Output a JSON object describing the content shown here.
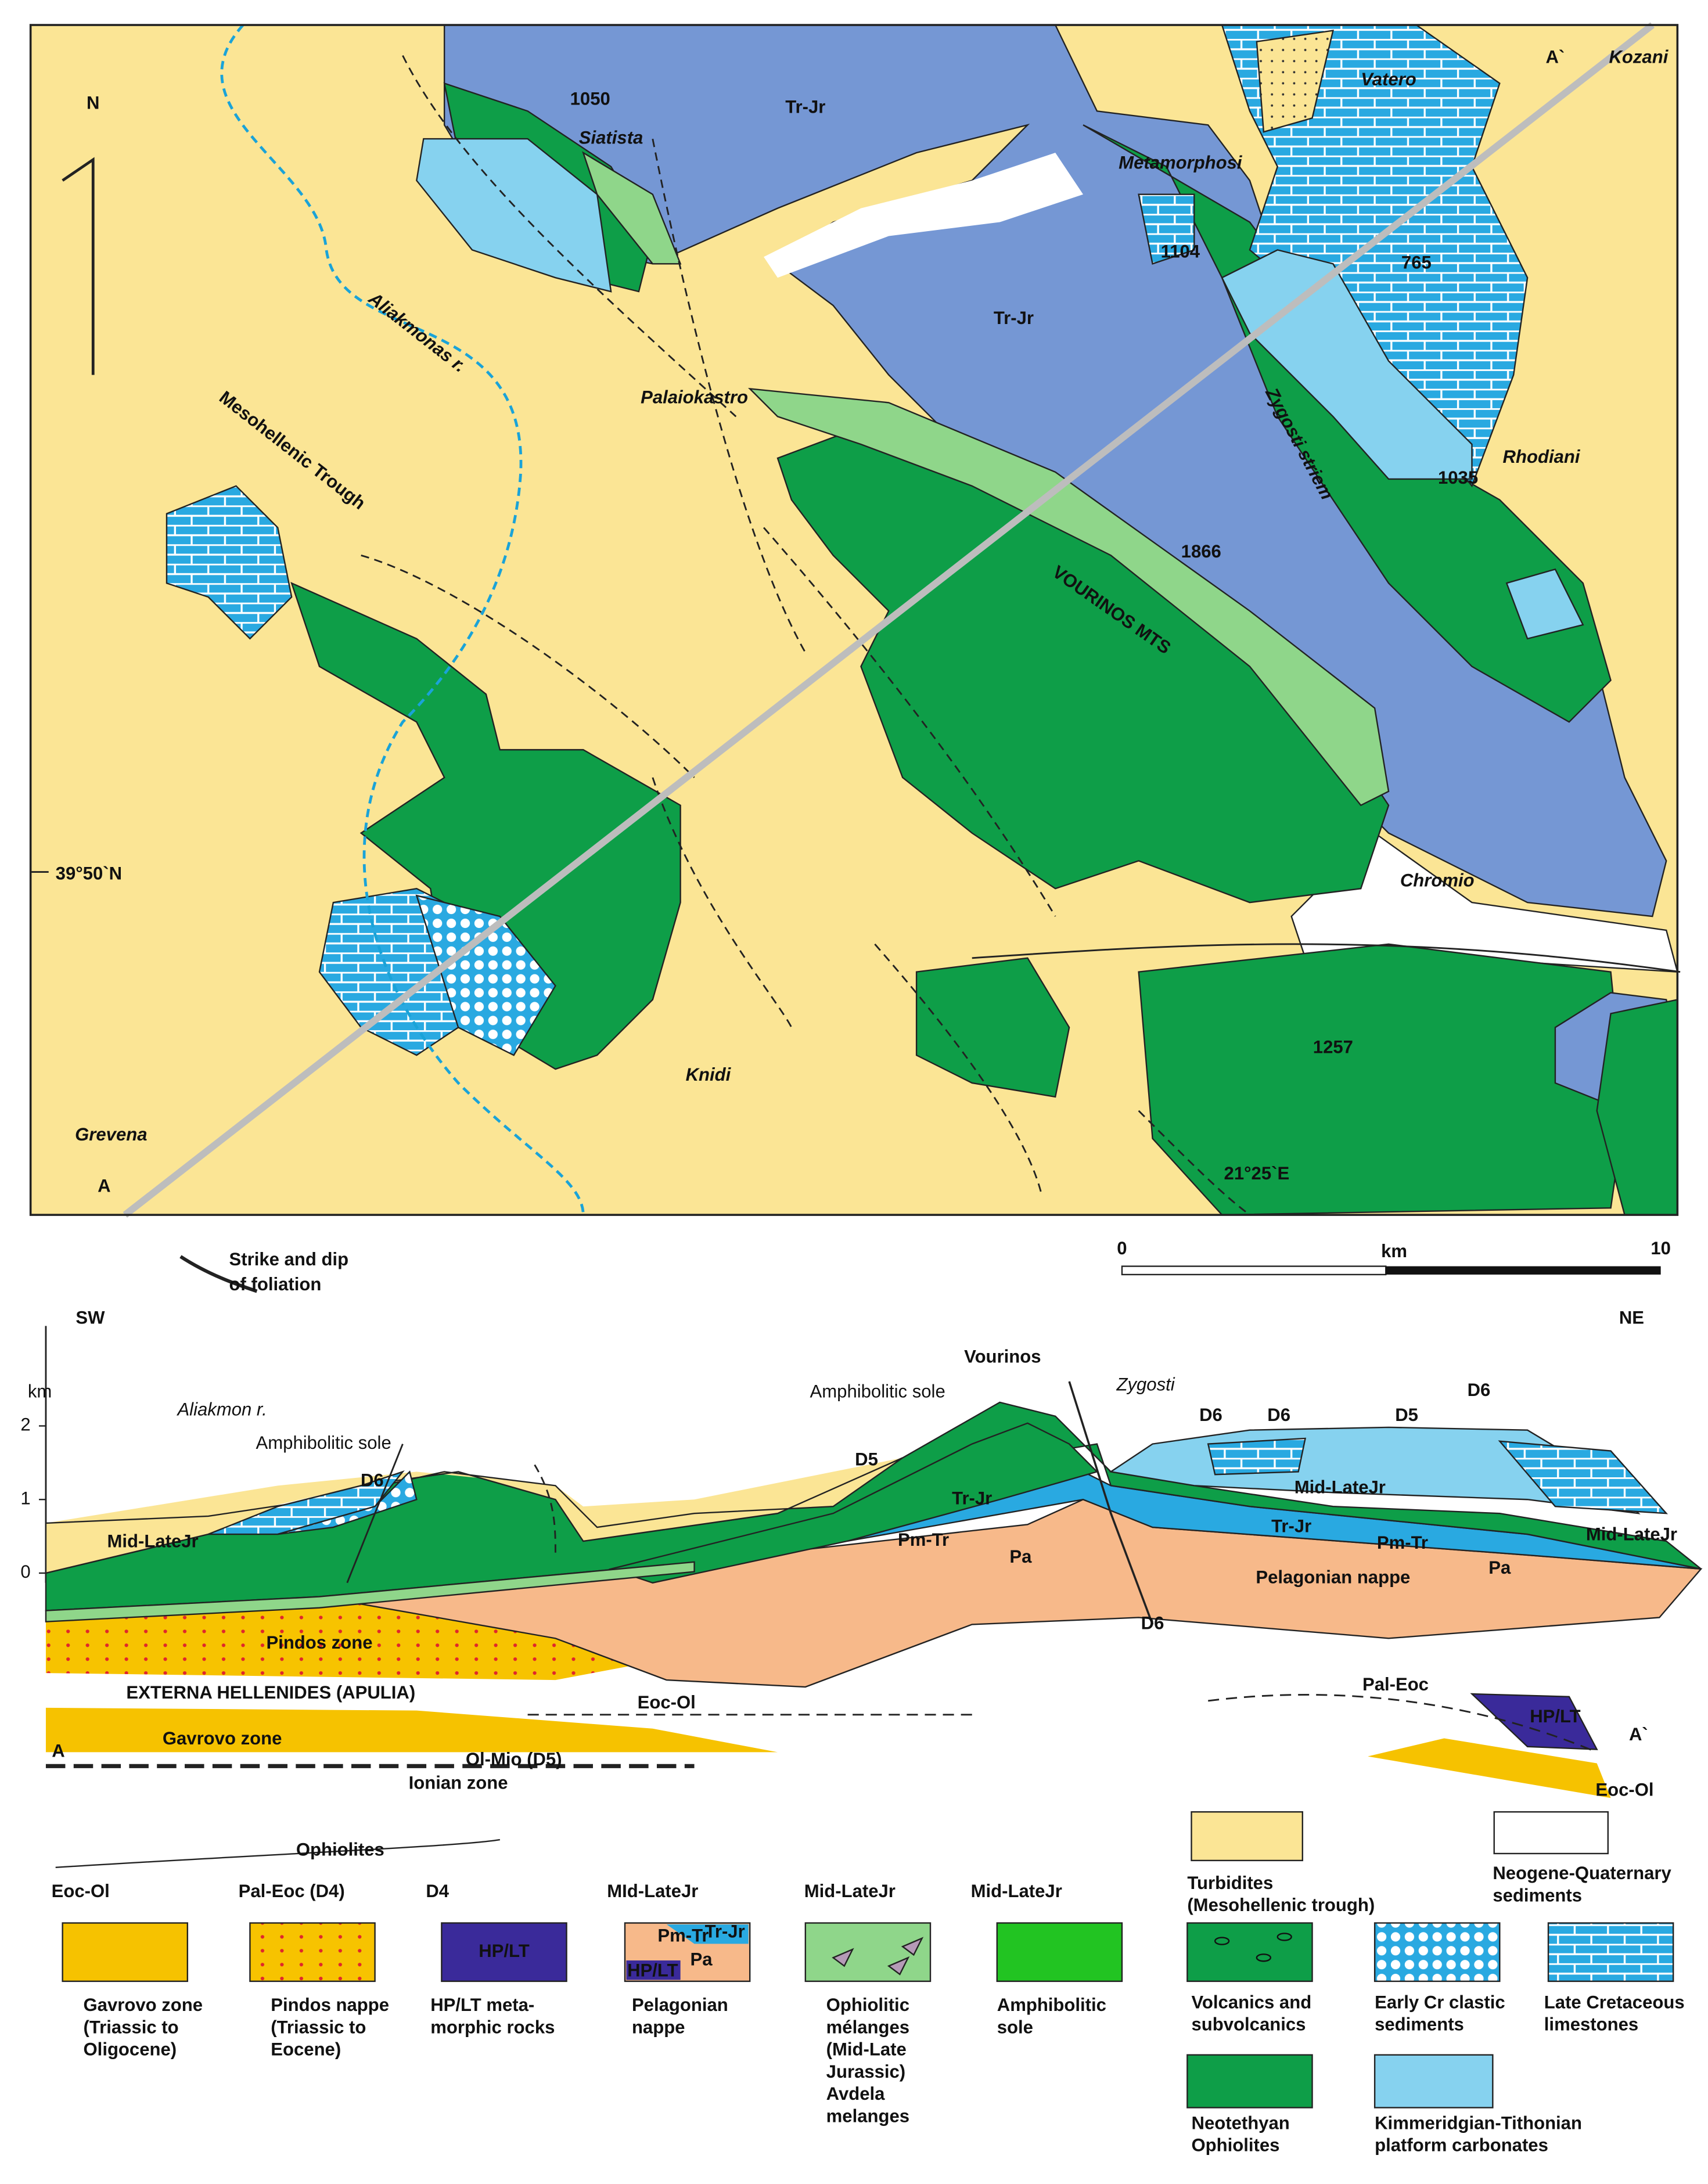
{
  "map": {
    "north": "N",
    "places": [
      "Siatista",
      "Metamorphosi",
      "Vatero",
      "Kozani",
      "Palaiokastro",
      "Rhodiani",
      "Chromio",
      "Knidi",
      "Grevena"
    ],
    "units": [
      "Tr-Jr",
      "Tr-Jr"
    ],
    "features": [
      "Aliakmonas r.",
      "Mesohellenic Trough",
      "Zygosti striem",
      "VOURINOS MTS"
    ],
    "elevations": [
      1050,
      1104,
      765,
      1035,
      1866,
      1257
    ],
    "latitude": "39°50`N",
    "longitude": "21°25`E",
    "section_start": "A",
    "section_end": "A`"
  },
  "foliation_symbol": [
    "Strike and dip",
    "of foliation"
  ],
  "scale_bar": {
    "ticks": [
      0,
      10
    ],
    "unit": "km"
  },
  "cross_section": {
    "left": "SW",
    "right": "NE",
    "axis_unit": "km",
    "axis_ticks": [
      0,
      1,
      2
    ],
    "labels": [
      "Aliakmon r.",
      "Amphibolitic sole",
      "D6",
      "Mid-LateJr",
      "Pindos zone",
      "EXTERNA HELLENIDES (APULIA)",
      "Eoc-Ol",
      "Gavrovo zone",
      "Ol-Mio (D5)",
      "Ionian zone",
      "A",
      "Amphibolitic sole",
      "D5",
      "Vourinos",
      "Tr-Jr",
      "Pm-Tr",
      "Pa",
      "Zygosti",
      "D6",
      "D6",
      "D5",
      "D6",
      "Mid-LateJr",
      "Tr-Jr",
      "Pm-Tr",
      "Pelagonian nappe",
      "Pa",
      "Mid-LateJr",
      "D6",
      "Pal-Eoc",
      "HP/LT",
      "A`",
      "Eoc-Ol"
    ]
  },
  "legend": {
    "thrusts": [
      "Ophiolites",
      "Eoc-Ol",
      "Pal-Eoc (D4)",
      "D4",
      "MId-LateJr",
      "Mid-LateJr",
      "Mid-LateJr"
    ],
    "items": [
      {
        "label": [
          "Gavrovo zone",
          "(Triassic to",
          "Oligocene)"
        ]
      },
      {
        "label": [
          "Pindos nappe",
          "(Triassic to",
          "Eocene)"
        ]
      },
      {
        "label": [
          "HP/LT meta-",
          "morphic rocks"
        ],
        "swatch_text": [
          "HP/LT"
        ]
      },
      {
        "label": [
          "Pelagonian",
          "nappe"
        ],
        "swatch_text": [
          "Pm-Tr",
          "Tr-Jr",
          "HP/LT",
          "Pa"
        ]
      },
      {
        "label": [
          "Ophiolitic",
          "mélanges",
          "(Mid-Late",
          "Jurassic)",
          "Avdela",
          "melanges"
        ]
      },
      {
        "label": [
          "Amphibolitic",
          "sole"
        ]
      },
      {
        "label": [
          "Turbidites",
          "(Mesohellenic trough)"
        ]
      },
      {
        "label": [
          "Neogene-Quaternary",
          "sediments"
        ]
      },
      {
        "label": [
          "Volcanics and",
          "subvolcanics"
        ]
      },
      {
        "label": [
          "Early Cr clastic",
          "sediments"
        ]
      },
      {
        "label": [
          "Late Cretaceous",
          "limestones"
        ]
      },
      {
        "label": [
          "Neotethyan",
          "Ophiolites"
        ]
      },
      {
        "label": [
          "Kimmeridgian-Tithonian",
          "platform carbonates"
        ]
      }
    ]
  }
}
